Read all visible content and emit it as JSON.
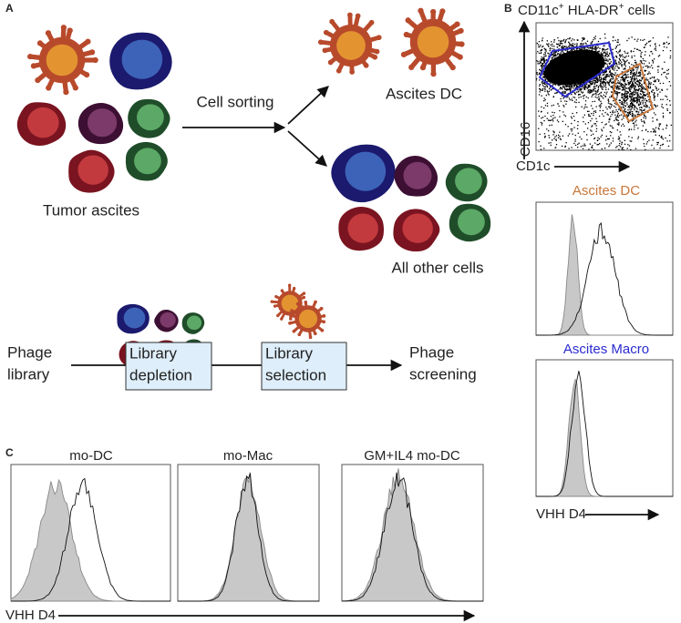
{
  "panel_a": {
    "label": "A",
    "cell_sorting": "Cell sorting",
    "ascites_dc": "Ascites DC",
    "tumor_ascites": "Tumor ascites",
    "all_other_cells": "All other cells",
    "phage_library": [
      "Phage",
      "library"
    ],
    "library_depletion": [
      "Library",
      "depletion"
    ],
    "library_selection": [
      "Library",
      "selection"
    ],
    "phage_screening": [
      "Phage",
      "screening"
    ]
  },
  "panel_b": {
    "label": "B",
    "title": [
      "CD11c",
      "+",
      " HLA-DR",
      "+",
      " cells"
    ],
    "y_label": "CD16",
    "x_label": "CD1c",
    "hist_titles": [
      "Ascites DC",
      "Ascites Macro"
    ],
    "x_axis": "VHH D4"
  },
  "panel_c": {
    "label": "C",
    "titles": [
      "mo-DC",
      "mo-Mac",
      "GM+IL4 mo-DC"
    ],
    "x_axis": "VHH D4"
  }
}
